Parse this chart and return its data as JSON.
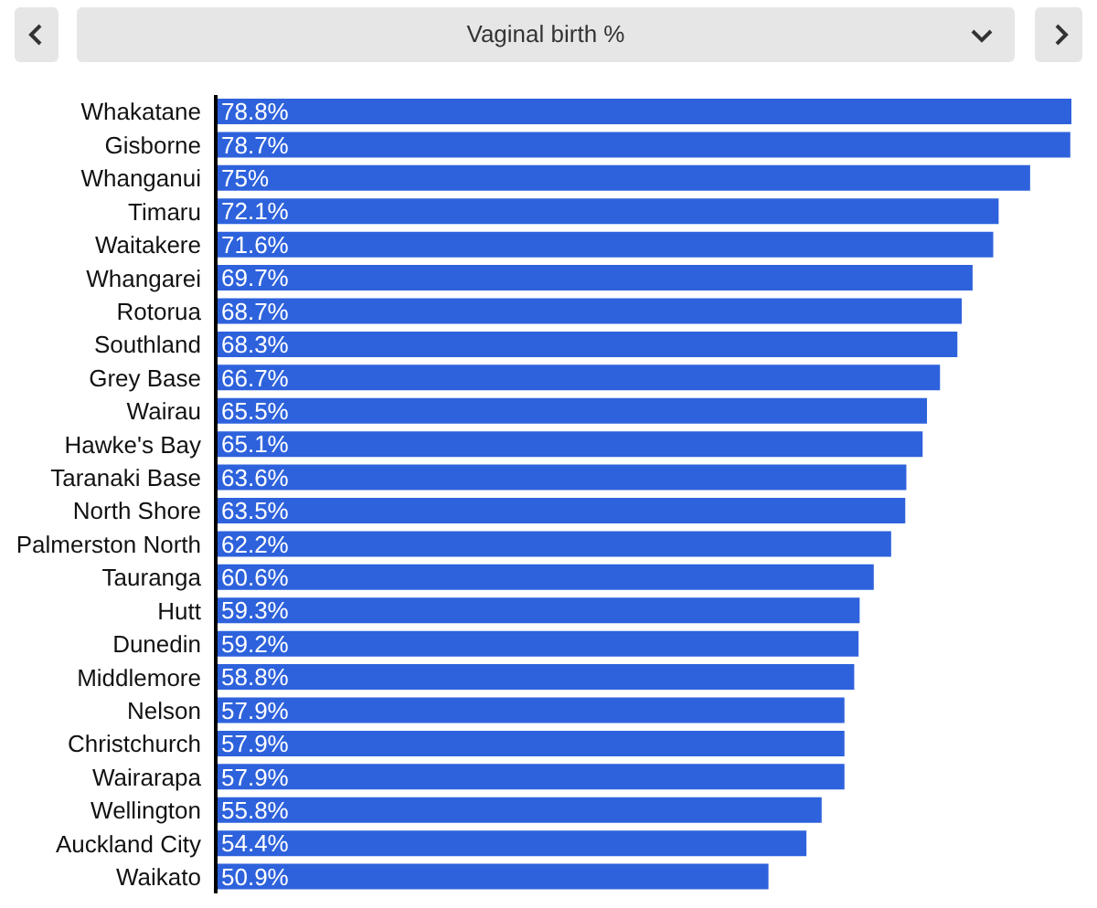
{
  "chart_data": {
    "type": "bar",
    "orientation": "horizontal",
    "title": "Vaginal birth %",
    "categories": [
      "Whakatane",
      "Gisborne",
      "Whanganui",
      "Timaru",
      "Waitakere",
      "Whangarei",
      "Rotorua",
      "Southland",
      "Grey Base",
      "Wairau",
      "Hawke's Bay",
      "Taranaki Base",
      "North Shore",
      "Palmerston North",
      "Tauranga",
      "Hutt",
      "Dunedin",
      "Middlemore",
      "Nelson",
      "Christchurch",
      "Wairarapa",
      "Wellington",
      "Auckland City",
      "Waikato"
    ],
    "values": [
      78.8,
      78.7,
      75,
      72.1,
      71.6,
      69.7,
      68.7,
      68.3,
      66.7,
      65.5,
      65.1,
      63.6,
      63.5,
      62.2,
      60.6,
      59.3,
      59.2,
      58.8,
      57.9,
      57.9,
      57.9,
      55.8,
      54.4,
      50.9
    ],
    "value_labels": [
      "78.8%",
      "78.7%",
      "75%",
      "72.1%",
      "71.6%",
      "69.7%",
      "68.7%",
      "68.3%",
      "66.7%",
      "65.5%",
      "65.1%",
      "63.6%",
      "63.5%",
      "62.2%",
      "60.6%",
      "59.3%",
      "59.2%",
      "58.8%",
      "57.9%",
      "57.9%",
      "57.9%",
      "55.8%",
      "54.4%",
      "50.9%"
    ],
    "color": "#2e62dc",
    "grid": false,
    "legend": false
  }
}
